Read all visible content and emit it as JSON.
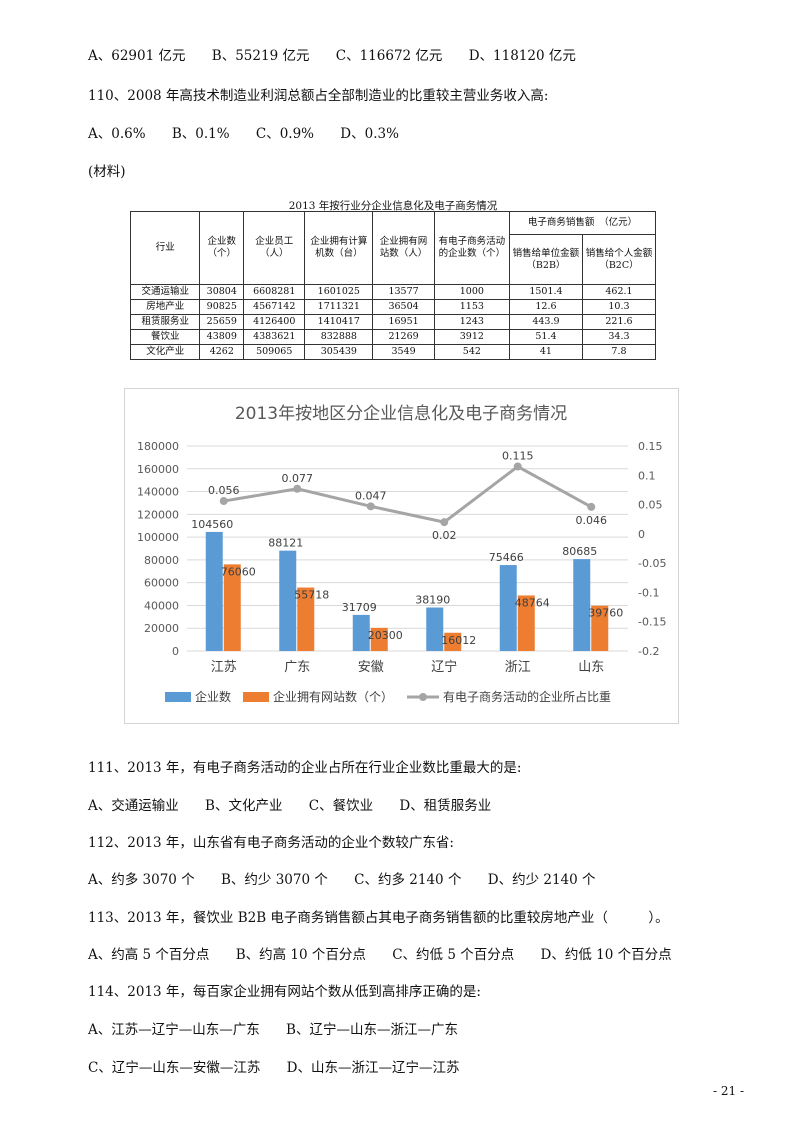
{
  "q109_options": [
    "A、62901 亿元",
    "B、55219 亿元",
    "C、116672 亿元",
    "D、118120 亿元"
  ],
  "q110": {
    "text": "110、2008 年高技术制造业利润总额占全部制造业的比重较主营业务收入高:",
    "options": [
      "A、0.6%",
      "B、0.1%",
      "C、0.9%",
      "D、0.3%"
    ]
  },
  "material_label": "(材料)",
  "table": {
    "title": "2013 年按行业分企业信息化及电子商务情况",
    "headers": {
      "industry": "行业",
      "enterprises": "企业数（个）",
      "employees": "企业员工（人）",
      "computers": "企业拥有计算机数（台）",
      "websites": "企业拥有网站数（人）",
      "ecommerce": "有电子商务活动的企业数（个）",
      "sales_group": "电子商务销售额　（亿元）",
      "b2b": "销售给单位金额（B2B）",
      "b2c": "销售给个人金额（B2C）"
    },
    "rows": [
      [
        "交通运输业",
        "30804",
        "6608281",
        "1601025",
        "13577",
        "1000",
        "1501.4",
        "462.1"
      ],
      [
        "房地产业",
        "90825",
        "4567142",
        "1711321",
        "36504",
        "1153",
        "12.6",
        "10.3"
      ],
      [
        "租赁服务业",
        "25659",
        "4126400",
        "1410417",
        "16951",
        "1243",
        "443.9",
        "221.6"
      ],
      [
        "餐饮业",
        "43809",
        "4383621",
        "832888",
        "21269",
        "3912",
        "51.4",
        "34.3"
      ],
      [
        "文化产业",
        "4262",
        "509065",
        "305439",
        "3549",
        "542",
        "41",
        "7.8"
      ]
    ]
  },
  "chart_data": {
    "type": "bar",
    "title": "2013年按地区分企业信息化及电子商务情况",
    "categories": [
      "江苏",
      "广东",
      "安徽",
      "辽宁",
      "浙江",
      "山东"
    ],
    "series": [
      {
        "name": "企业数",
        "type": "bar",
        "values": [
          104560,
          88121,
          31709,
          38190,
          75466,
          80685
        ],
        "color": "#5b9bd5"
      },
      {
        "name": "企业拥有网站数（个）",
        "type": "bar",
        "values": [
          76060,
          55718,
          20300,
          16012,
          48764,
          39760
        ],
        "color": "#ed7d31"
      },
      {
        "name": "有电子商务活动的企业所占比重",
        "type": "line",
        "axis": "right",
        "values": [
          0.056,
          0.077,
          0.047,
          0.02,
          0.115,
          0.046
        ],
        "color": "#a5a5a5"
      }
    ],
    "left_axis": {
      "min": 0,
      "max": 180000,
      "step": 20000,
      "ticks": [
        "0",
        "20000",
        "40000",
        "60000",
        "80000",
        "100000",
        "120000",
        "140000",
        "160000",
        "180000"
      ]
    },
    "right_axis": {
      "min": -0.2,
      "max": 0.15,
      "step": 0.05,
      "ticks": [
        "-0.2",
        "-0.15",
        "-0.1",
        "-0.05",
        "0",
        "0.05",
        "0.1",
        "0.15"
      ]
    },
    "grid": true,
    "legend": "bottom"
  },
  "questions": [
    {
      "text": "111、2013 年，有电子商务活动的企业占所在行业企业数比重最大的是:",
      "options": [
        "A、交通运输业",
        "B、文化产业",
        "C、餐饮业",
        "D、租赁服务业"
      ]
    },
    {
      "text": "112、2013 年，山东省有电子商务活动的企业个数较广东省:",
      "options": [
        "A、约多 3070 个",
        "B、约少 3070 个",
        "C、约多 2140 个",
        "D、约少 2140 个"
      ]
    },
    {
      "text": "113、2013 年，餐饮业 B2B 电子商务销售额占其电子商务销售额的比重较房地产业（　　　）。",
      "options": [
        "A、约高 5 个百分点",
        "B、约高 10 个百分点",
        "C、约低 5 个百分点",
        "D、约低 10 个百分点"
      ]
    },
    {
      "text": "114、2013 年，每百家企业拥有网站个数从低到高排序正确的是:",
      "options": [
        "A、江苏—辽宁—山东—广东",
        "B、辽宁—山东—浙江—广东",
        "C、辽宁—山东—安徽—江苏",
        "D、山东—浙江—辽宁—江苏"
      ]
    }
  ],
  "page_number": "- 21 -"
}
